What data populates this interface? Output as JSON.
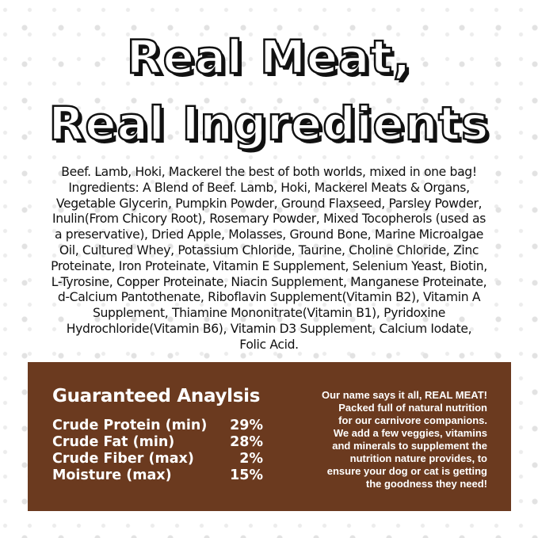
{
  "title": {
    "line1": "Real Meat,",
    "line2": "Real Ingredients"
  },
  "ingredients": [
    "Beef. Lamb, Hoki, Mackerel the best of both worlds, mixed in one bag!",
    "Ingredients: A Blend of Beef. Lamb, Hoki, Mackerel Meats & Organs,",
    "Vegetable Glycerin, Pumpkin Powder, Ground Flaxseed, Parsley Powder,",
    "Inulin(From Chicory Root), Rosemary Powder, Mixed Tocopherols (used as",
    "a preservative), Dried Apple, Molasses, Ground Bone, Marine Microalgae",
    "Oil, Cultured Whey, Potassium Chloride, Taurine, Choline Chloride, Zinc",
    "Proteinate, Iron Proteinate, Vitamin E Supplement, Selenium Yeast, Biotin,",
    "L-Tyrosine, Copper Proteinate, Niacin Supplement, Manganese Proteinate,",
    "d-Calcium Pantothenate, Riboflavin Supplement(Vitamin B2), Vitamin A",
    "Supplement, Thiamine Mononitrate(Vitamin B1), Pyridoxine",
    "Hydrochloride(Vitamin B6), Vitamin D3 Supplement, Calcium Iodate,",
    "Folic Acid."
  ],
  "analysis": {
    "heading": "Guaranteed Anaylsis",
    "rows": [
      {
        "label": "Crude Protein (min)",
        "value": "29%"
      },
      {
        "label": "Crude Fat (min)",
        "value": "28%"
      },
      {
        "label": "Crude Fiber (max)",
        "value": "2%"
      },
      {
        "label": "Moisture (max)",
        "value": "15%"
      }
    ]
  },
  "blurb": [
    "Our name says it all, REAL MEAT!",
    "Packed full of natural nutrition",
    "for our carnivore companions.",
    "We add a few veggies, vitamins",
    "and minerals to supplement the",
    "nutrition nature provides, to",
    "ensure your dog or cat is getting",
    "the goodness they need!"
  ],
  "colors": {
    "panel": "#6b3a1f"
  }
}
